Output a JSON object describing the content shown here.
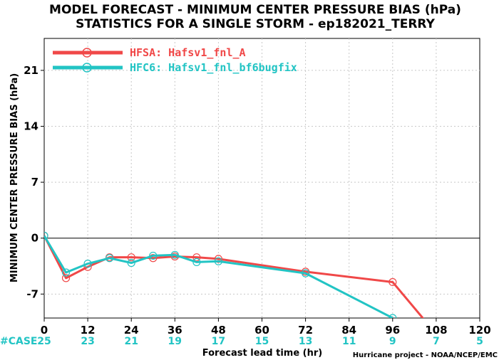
{
  "chart_data": {
    "type": "line",
    "title": "MODEL FORECAST - MINIMUM CENTER PRESSURE BIAS (hPa)",
    "subtitle": "STATISTICS FOR A SINGLE STORM - ep182021_TERRY",
    "xlabel": "Forecast lead time (hr)",
    "ylabel": "MINIMUM CENTER PRESSURE BIAS (hPa)",
    "xlim": [
      0,
      120
    ],
    "ylim": [
      -10,
      25
    ],
    "x_ticks": [
      0,
      12,
      24,
      36,
      48,
      60,
      72,
      84,
      96,
      108,
      120
    ],
    "y_ticks": [
      -7,
      0,
      7,
      14,
      21
    ],
    "grid": true,
    "legend_position": "top-left",
    "zero_line": true,
    "series": [
      {
        "name": "HFSA: Hafsv1_fnl_A",
        "color": "#f04848",
        "x": [
          0,
          6,
          12,
          18,
          24,
          30,
          36,
          42,
          48,
          72,
          96,
          108
        ],
        "y": [
          0.3,
          -5.0,
          -3.6,
          -2.4,
          -2.4,
          -2.5,
          -2.3,
          -2.4,
          -2.6,
          -4.2,
          -5.5,
          -12.0
        ]
      },
      {
        "name": "HFC6: Hafsv1_fnl_bf6bugfix",
        "color": "#22c4c4",
        "x": [
          0,
          6,
          12,
          18,
          24,
          30,
          36,
          42,
          48,
          72,
          96
        ],
        "y": [
          0.3,
          -4.3,
          -3.2,
          -2.5,
          -3.1,
          -2.2,
          -2.1,
          -3.0,
          -2.9,
          -4.4,
          -10.0
        ]
      }
    ],
    "markers_x": [
      0,
      6,
      12,
      18,
      24,
      30,
      36,
      42,
      48,
      72,
      96
    ],
    "case_label": "#CASE",
    "case_counts": [
      {
        "x": 0,
        "n": "25"
      },
      {
        "x": 12,
        "n": "23"
      },
      {
        "x": 24,
        "n": "21"
      },
      {
        "x": 36,
        "n": "19"
      },
      {
        "x": 48,
        "n": "17"
      },
      {
        "x": 60,
        "n": "15"
      },
      {
        "x": 72,
        "n": "13"
      },
      {
        "x": 84,
        "n": "11"
      },
      {
        "x": 96,
        "n": "9"
      },
      {
        "x": 108,
        "n": "7"
      },
      {
        "x": 120,
        "n": "5"
      }
    ],
    "credit": "Hurricane project - NOAA/NCEP/EMC"
  }
}
